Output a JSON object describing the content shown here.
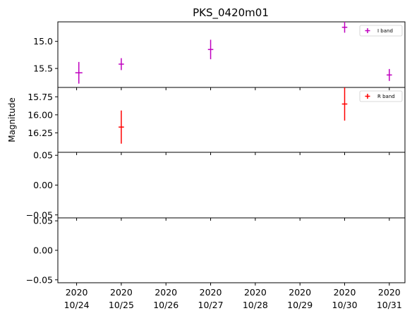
{
  "chart_data": {
    "type": "scatter",
    "title": "PKS_0420m01",
    "ylabel": "Magnitude",
    "xlabel": "",
    "x_ticks": [
      {
        "x": 0,
        "line1": "2020",
        "line2": "10/24"
      },
      {
        "x": 1,
        "line1": "2020",
        "line2": "10/25"
      },
      {
        "x": 2,
        "line1": "2020",
        "line2": "10/26"
      },
      {
        "x": 3,
        "line1": "2020",
        "line2": "10/27"
      },
      {
        "x": 4,
        "line1": "2020",
        "line2": "10/28"
      },
      {
        "x": 5,
        "line1": "2020",
        "line2": "10/29"
      },
      {
        "x": 6,
        "line1": "2020",
        "line2": "10/30"
      },
      {
        "x": 7,
        "line1": "2020",
        "line2": "10/31"
      }
    ],
    "xlim": [
      -0.42,
      7.35
    ],
    "panels": [
      {
        "id": "i-band",
        "inverted": true,
        "ylim": [
          15.85,
          14.64
        ],
        "yticks": [
          15.0,
          15.5
        ],
        "ytick_labels": [
          "15.0",
          "15.5"
        ],
        "legend": {
          "label": "I band",
          "color": "#bf00bf",
          "placement": "upper right"
        },
        "series": [
          {
            "name": "I band",
            "color": "#bf00bf",
            "points": [
              {
                "x": 0.05,
                "y": 15.58,
                "yerr": 0.2,
                "xerr": 0.08
              },
              {
                "x": 1.0,
                "y": 15.42,
                "yerr": 0.11,
                "xerr": 0.06
              },
              {
                "x": 3.0,
                "y": 15.15,
                "yerr": 0.18,
                "xerr": 0.06
              },
              {
                "x": 6.0,
                "y": 14.74,
                "yerr": 0.1,
                "xerr": 0.06
              },
              {
                "x": 7.0,
                "y": 15.62,
                "yerr": 0.11,
                "xerr": 0.06
              }
            ]
          }
        ]
      },
      {
        "id": "r-band",
        "inverted": true,
        "ylim": [
          16.52,
          15.62
        ],
        "yticks": [
          15.75,
          16.0,
          16.25
        ],
        "ytick_labels": [
          "15.75",
          "16.00",
          "16.25"
        ],
        "legend": {
          "label": "R band",
          "color": "#ff0000",
          "placement": "upper right"
        },
        "series": [
          {
            "name": "R band",
            "color": "#ff0000",
            "points": [
              {
                "x": 1.0,
                "y": 16.17,
                "yerr": 0.23,
                "xerr": 0.06
              },
              {
                "x": 6.0,
                "y": 15.85,
                "yerr": 0.23,
                "xerr": 0.06
              }
            ]
          }
        ]
      },
      {
        "id": "empty-panel-3",
        "inverted": false,
        "ylim": [
          -0.055,
          0.055
        ],
        "yticks": [
          0.05,
          0.0,
          -0.05
        ],
        "ytick_labels": [
          "0.05",
          "0.00",
          "−0.05"
        ],
        "series": []
      },
      {
        "id": "empty-panel-4",
        "inverted": false,
        "ylim": [
          -0.055,
          0.055
        ],
        "yticks": [
          0.05,
          0.0,
          -0.05
        ],
        "ytick_labels": [
          "0.05",
          "0.00",
          "−0.05"
        ],
        "series": []
      }
    ]
  }
}
